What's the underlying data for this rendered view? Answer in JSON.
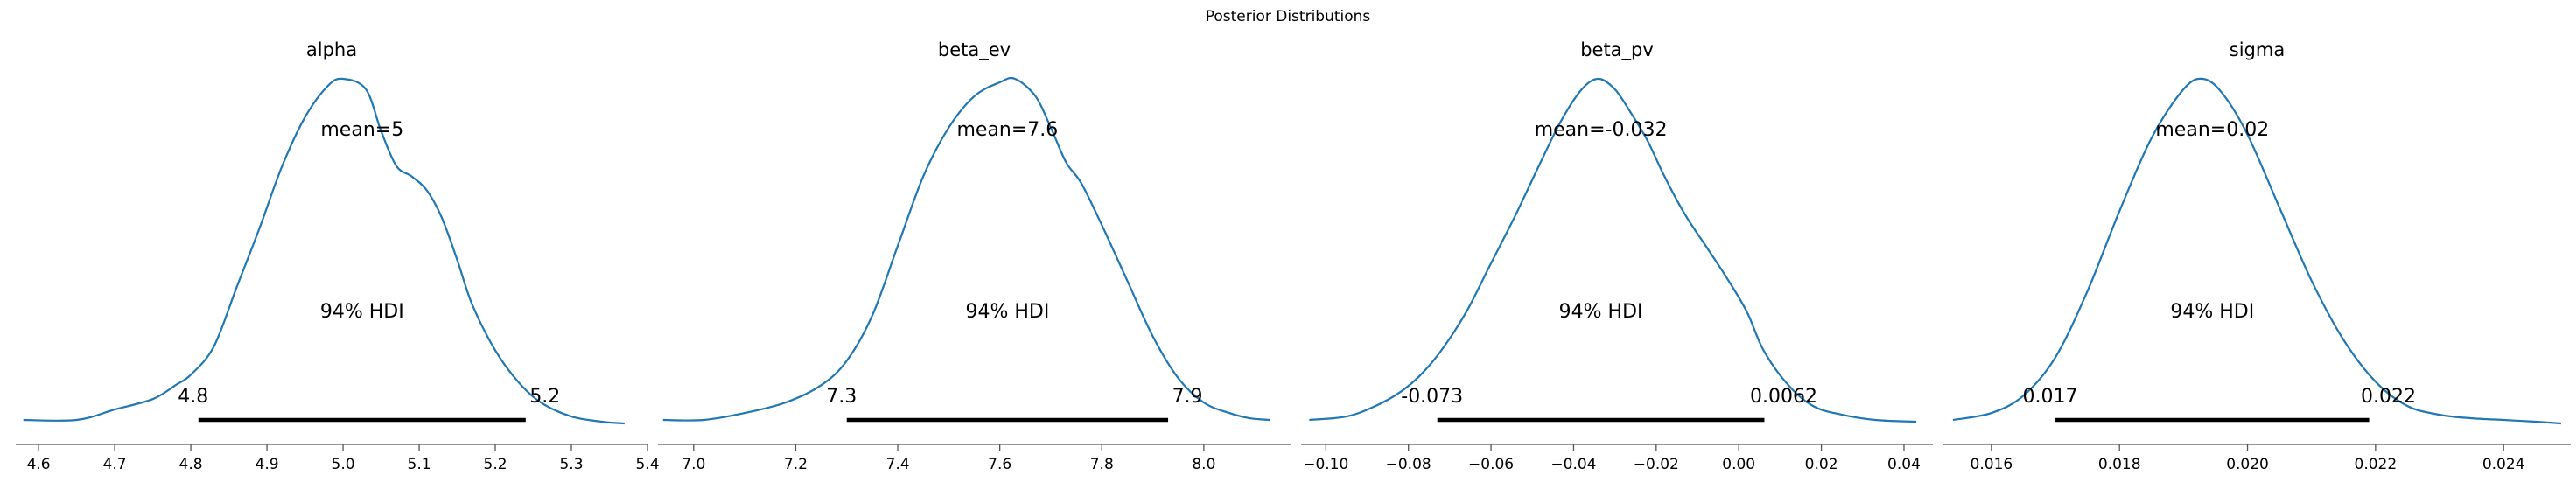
{
  "chart_data": [
    {
      "type": "line",
      "title": "alpha",
      "mean_label": "mean=5",
      "hdi_text": "94% HDI",
      "hdi": [
        4.81,
        5.24
      ],
      "hdi_labels": [
        "4.8",
        "5.2"
      ],
      "xlim": [
        4.57,
        5.4
      ],
      "ylim": [
        0,
        1
      ],
      "xticks": [
        4.6,
        4.7,
        4.8,
        4.9,
        5.0,
        5.1,
        5.2,
        5.3,
        5.4
      ],
      "xtick_labels": [
        "4.6",
        "4.7",
        "4.8",
        "4.9",
        "5.0",
        "5.1",
        "5.2",
        "5.3",
        "5.4"
      ],
      "x": [
        4.58,
        4.65,
        4.7,
        4.75,
        4.78,
        4.8,
        4.83,
        4.86,
        4.89,
        4.92,
        4.95,
        4.98,
        5.0,
        5.03,
        5.05,
        5.07,
        5.09,
        5.11,
        5.13,
        5.15,
        5.17,
        5.2,
        5.23,
        5.26,
        5.3,
        5.34,
        5.37
      ],
      "y": [
        0.02,
        0.02,
        0.05,
        0.08,
        0.12,
        0.15,
        0.23,
        0.4,
        0.57,
        0.75,
        0.89,
        0.98,
        1.0,
        0.97,
        0.85,
        0.75,
        0.72,
        0.68,
        0.6,
        0.48,
        0.35,
        0.22,
        0.13,
        0.07,
        0.03,
        0.015,
        0.01
      ]
    },
    {
      "type": "line",
      "title": "beta_ev",
      "mean_label": "mean=7.6",
      "hdi_text": "94% HDI",
      "hdi": [
        7.3,
        7.93
      ],
      "hdi_labels": [
        "7.3",
        "7.9"
      ],
      "xlim": [
        6.93,
        8.17
      ],
      "ylim": [
        0,
        1
      ],
      "xticks": [
        7.0,
        7.2,
        7.4,
        7.6,
        7.8,
        8.0
      ],
      "xtick_labels": [
        "7.0",
        "7.2",
        "7.4",
        "7.6",
        "7.8",
        "8.0"
      ],
      "x": [
        6.94,
        7.02,
        7.1,
        7.18,
        7.25,
        7.3,
        7.35,
        7.4,
        7.45,
        7.5,
        7.55,
        7.6,
        7.63,
        7.67,
        7.7,
        7.73,
        7.76,
        7.8,
        7.85,
        7.9,
        7.95,
        8.0,
        8.05,
        8.09,
        8.13
      ],
      "y": [
        0.02,
        0.02,
        0.04,
        0.07,
        0.12,
        0.19,
        0.32,
        0.52,
        0.72,
        0.86,
        0.95,
        0.99,
        1.0,
        0.95,
        0.86,
        0.76,
        0.7,
        0.58,
        0.42,
        0.26,
        0.14,
        0.07,
        0.04,
        0.025,
        0.02
      ]
    },
    {
      "type": "line",
      "title": "beta_pv",
      "mean_label": "mean=-0.032",
      "hdi_text": "94% HDI",
      "hdi": [
        -0.073,
        0.0062
      ],
      "hdi_labels": [
        "-0.073",
        "0.0062"
      ],
      "xlim": [
        -0.106,
        0.047
      ],
      "ylim": [
        0,
        1
      ],
      "xticks": [
        -0.1,
        -0.08,
        -0.06,
        -0.04,
        -0.02,
        0.0,
        0.02,
        0.04
      ],
      "xtick_labels": [
        "−0.10",
        "−0.08",
        "−0.06",
        "−0.04",
        "−0.02",
        "0.00",
        "0.02",
        "0.04"
      ],
      "x": [
        -0.104,
        -0.095,
        -0.088,
        -0.082,
        -0.077,
        -0.072,
        -0.066,
        -0.06,
        -0.054,
        -0.048,
        -0.043,
        -0.038,
        -0.034,
        -0.03,
        -0.026,
        -0.022,
        -0.018,
        -0.013,
        -0.008,
        -0.003,
        0.002,
        0.006,
        0.012,
        0.018,
        0.025,
        0.033,
        0.043
      ],
      "y": [
        0.02,
        0.03,
        0.06,
        0.1,
        0.15,
        0.22,
        0.33,
        0.47,
        0.61,
        0.76,
        0.88,
        0.97,
        1.0,
        0.97,
        0.9,
        0.82,
        0.72,
        0.61,
        0.52,
        0.43,
        0.33,
        0.22,
        0.12,
        0.06,
        0.035,
        0.02,
        0.015
      ]
    },
    {
      "type": "line",
      "title": "sigma",
      "mean_label": "mean=0.02",
      "hdi_text": "94% HDI",
      "hdi": [
        0.017,
        0.0219
      ],
      "hdi_labels": [
        "0.017",
        "0.022"
      ],
      "xlim": [
        0.01525,
        0.02505
      ],
      "ylim": [
        0,
        1
      ],
      "xticks": [
        0.016,
        0.018,
        0.02,
        0.022,
        0.024
      ],
      "xtick_labels": [
        "0.016",
        "0.018",
        "0.020",
        "0.022",
        "0.024"
      ],
      "x": [
        0.0154,
        0.016,
        0.0165,
        0.017,
        0.0175,
        0.018,
        0.0185,
        0.019,
        0.0193,
        0.0196,
        0.02,
        0.0205,
        0.021,
        0.0215,
        0.022,
        0.0225,
        0.023,
        0.0235,
        0.024,
        0.0245,
        0.0249
      ],
      "y": [
        0.02,
        0.04,
        0.09,
        0.2,
        0.39,
        0.62,
        0.83,
        0.97,
        1.0,
        0.96,
        0.84,
        0.63,
        0.42,
        0.25,
        0.13,
        0.06,
        0.035,
        0.025,
        0.02,
        0.015,
        0.01
      ]
    }
  ],
  "figure": {
    "suptitle": "Posterior Distributions",
    "line_color": "#1f77b4",
    "hdi_color": "#000000",
    "axis_color": "#555555"
  }
}
